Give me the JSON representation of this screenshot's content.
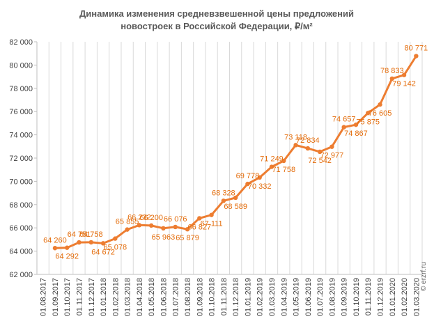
{
  "chart_data": {
    "type": "line",
    "title": [
      "Динамика изменения средневзвешенной цены предложений",
      "новостроек в Российской Федерации, ₽/м²"
    ],
    "xlabel": "",
    "ylabel": "",
    "ylim": [
      62000,
      82000
    ],
    "y_ticks": [
      "62 000",
      "64 000",
      "66 000",
      "68 000",
      "70 000",
      "72 000",
      "74 000",
      "76 000",
      "78 000",
      "80 000",
      "82 000"
    ],
    "grid": "vertical",
    "categories": [
      "01.08.2017",
      "01.09.2017",
      "01.10.2017",
      "01.11.2017",
      "01.12.2017",
      "01.01.2018",
      "01.02.2018",
      "01.03.2018",
      "01.04.2018",
      "01.05.2018",
      "01.06.2018",
      "01.07.2018",
      "01.08.2018",
      "01.09.2018",
      "01.10.2018",
      "01.11.2018",
      "01.12.2018",
      "01.01.2019",
      "01.02.2019",
      "01.03.2019",
      "01.04.2019",
      "01.05.2019",
      "01.06.2019",
      "01.07.2019",
      "01.08.2019",
      "01.09.2019",
      "01.10.2019",
      "01.11.2019",
      "01.12.2019",
      "01.01.2020",
      "01.02.2020",
      "01.03.2020"
    ],
    "values": [
      null,
      64260,
      64292,
      64751,
      64758,
      64672,
      65078,
      65855,
      66232,
      66200,
      65963,
      66076,
      65879,
      66827,
      67111,
      68328,
      68589,
      69778,
      70332,
      71249,
      71758,
      73118,
      72834,
      72542,
      72977,
      74657,
      74867,
      75875,
      76605,
      78833,
      79142,
      80771
    ],
    "data_labels": [
      null,
      "64 260",
      "64 292",
      "64 751",
      "64 758",
      "64 672",
      "65 078",
      "65 855",
      "66 232",
      "66 200",
      "65 963",
      "66 076",
      "65 879",
      "66 827",
      "67 111",
      "68 328",
      "68 589",
      "69 778",
      "70 332",
      "71 249",
      "71 758",
      "73 118",
      "72 834",
      "72 542",
      "72 977",
      "74 657",
      "74 867",
      "75 875",
      "76 605",
      "78 833",
      "79 142",
      "80 771"
    ],
    "label_positions": [
      null,
      "above",
      "below",
      "above",
      "above",
      "below",
      "below",
      "above",
      "above",
      "above",
      "below",
      "above",
      "below",
      "below",
      "below",
      "above",
      "below",
      "above",
      "below",
      "above",
      "below",
      "above",
      "above",
      "below",
      "below",
      "above",
      "below",
      "below",
      "below",
      "above",
      "below",
      "above"
    ],
    "colors": {
      "line": "#ED7D31",
      "labels": "#E46C0A",
      "grid": "#D9D9D9"
    },
    "watermark": "© erzrf.ru"
  }
}
